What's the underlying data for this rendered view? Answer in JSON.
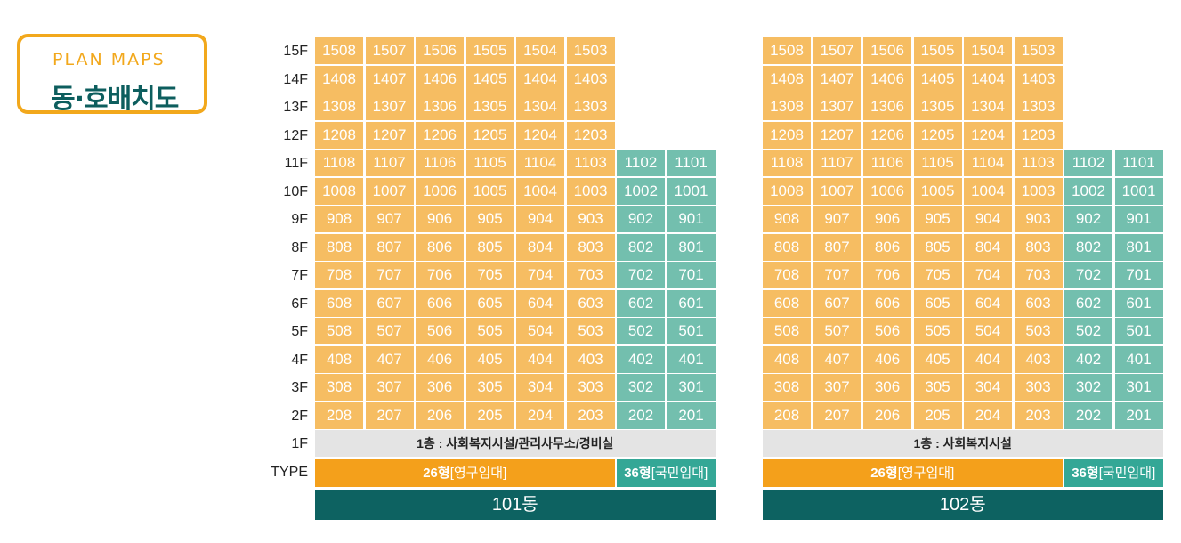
{
  "header": {
    "en_title": "PLAN MAPS",
    "ko_title": "동·호배치도"
  },
  "floor_labels": [
    "15F",
    "14F",
    "13F",
    "12F",
    "11F",
    "10F",
    "9F",
    "8F",
    "7F",
    "6F",
    "5F",
    "4F",
    "3F",
    "2F",
    "1F",
    "TYPE"
  ],
  "buildings": [
    {
      "name": "101동",
      "first_floor": "1층 : 사회복지시설/관리사무소/경비실",
      "type_26_bold": "26형",
      "type_26_sub": "[영구임대]",
      "type_36_bold": "36형",
      "type_36_sub": "[국민임대]"
    },
    {
      "name": "102동",
      "first_floor": "1층 : 사회복지시설",
      "type_26_bold": "26형",
      "type_26_sub": "[영구임대]",
      "type_36_bold": "36형",
      "type_36_sub": "[국민임대]"
    }
  ],
  "colors": {
    "type26_unit": "#f6bd62",
    "type36_unit": "#73bfae",
    "type26_bar": "#f4a01b",
    "type36_bar": "#34a796",
    "building_bar": "#0d6261",
    "accent": "#f2a81c"
  }
}
